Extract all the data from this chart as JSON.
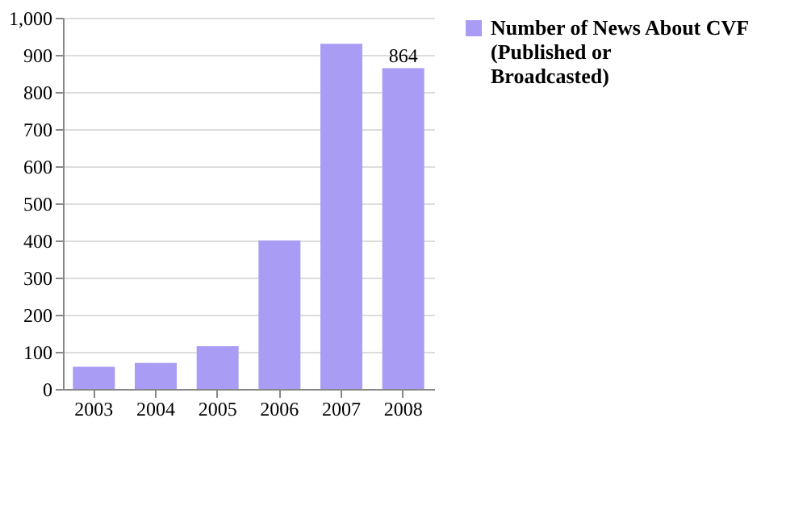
{
  "chart_data": {
    "type": "bar",
    "categories": [
      "2003",
      "2004",
      "2005",
      "2006",
      "2007",
      "2008"
    ],
    "series": [
      {
        "name": "Number of News About CVF (Published or Broadcasted)",
        "color": "#a99cf5",
        "values": [
          60,
          70,
          115,
          400,
          930,
          864
        ],
        "value_labels": [
          null,
          null,
          null,
          null,
          null,
          "864"
        ]
      }
    ],
    "ylim": [
      0,
      1000
    ],
    "yticks": [
      0,
      100,
      200,
      300,
      400,
      500,
      600,
      700,
      800,
      900,
      {
        "value": 1000,
        "label": "1,000"
      }
    ],
    "grid": "y",
    "legend": "right"
  }
}
